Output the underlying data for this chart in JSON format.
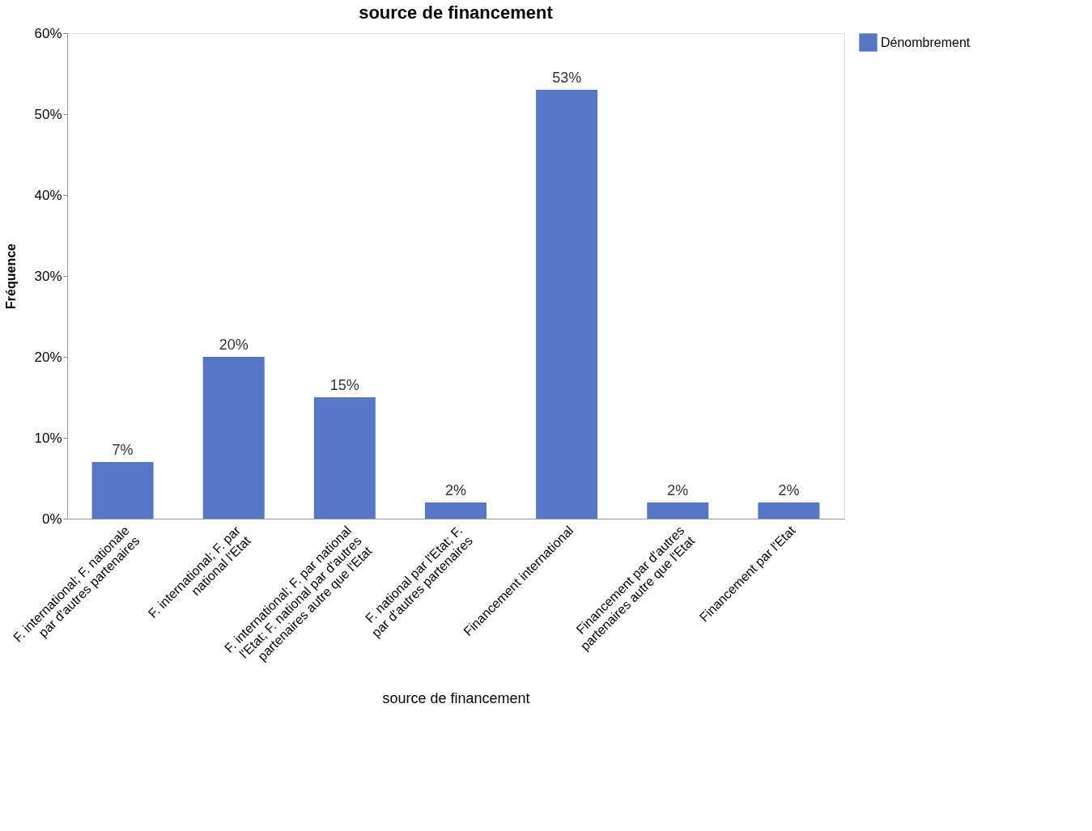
{
  "chart_data": {
    "type": "bar",
    "title": "source de financement",
    "xlabel": "source de financement",
    "ylabel": "Fréquence",
    "categories": [
      "F. international; F. nationale\npar d'autres partenaires",
      "F. international; F. par\nnational l'Etat",
      "F. international; F. par national\nl'Etat; F. national par d'autres\npartenaires autre que l'Etat",
      "F. national par l'Etat; F.\npar d'autres partenaires",
      "Financement international",
      "Financement par d'autres\npartenaires autre que l'Etat",
      "Financement par l'Etat"
    ],
    "series": [
      {
        "name": "Dénombrement",
        "color": "#5577c5",
        "values": [
          7,
          20,
          15,
          2,
          53,
          2,
          2
        ],
        "value_labels": [
          "7%",
          "20%",
          "15%",
          "2%",
          "53%",
          "2%",
          "2%"
        ]
      }
    ],
    "ylim": [
      0,
      60
    ],
    "yticks": [
      {
        "value": 0,
        "label": "0%"
      },
      {
        "value": 10,
        "label": "10%"
      },
      {
        "value": 20,
        "label": "20%"
      },
      {
        "value": 30,
        "label": "30%"
      },
      {
        "value": 40,
        "label": "40%"
      },
      {
        "value": 50,
        "label": "50%"
      },
      {
        "value": 60,
        "label": "60%"
      }
    ],
    "grid": false,
    "legend": "top right"
  }
}
